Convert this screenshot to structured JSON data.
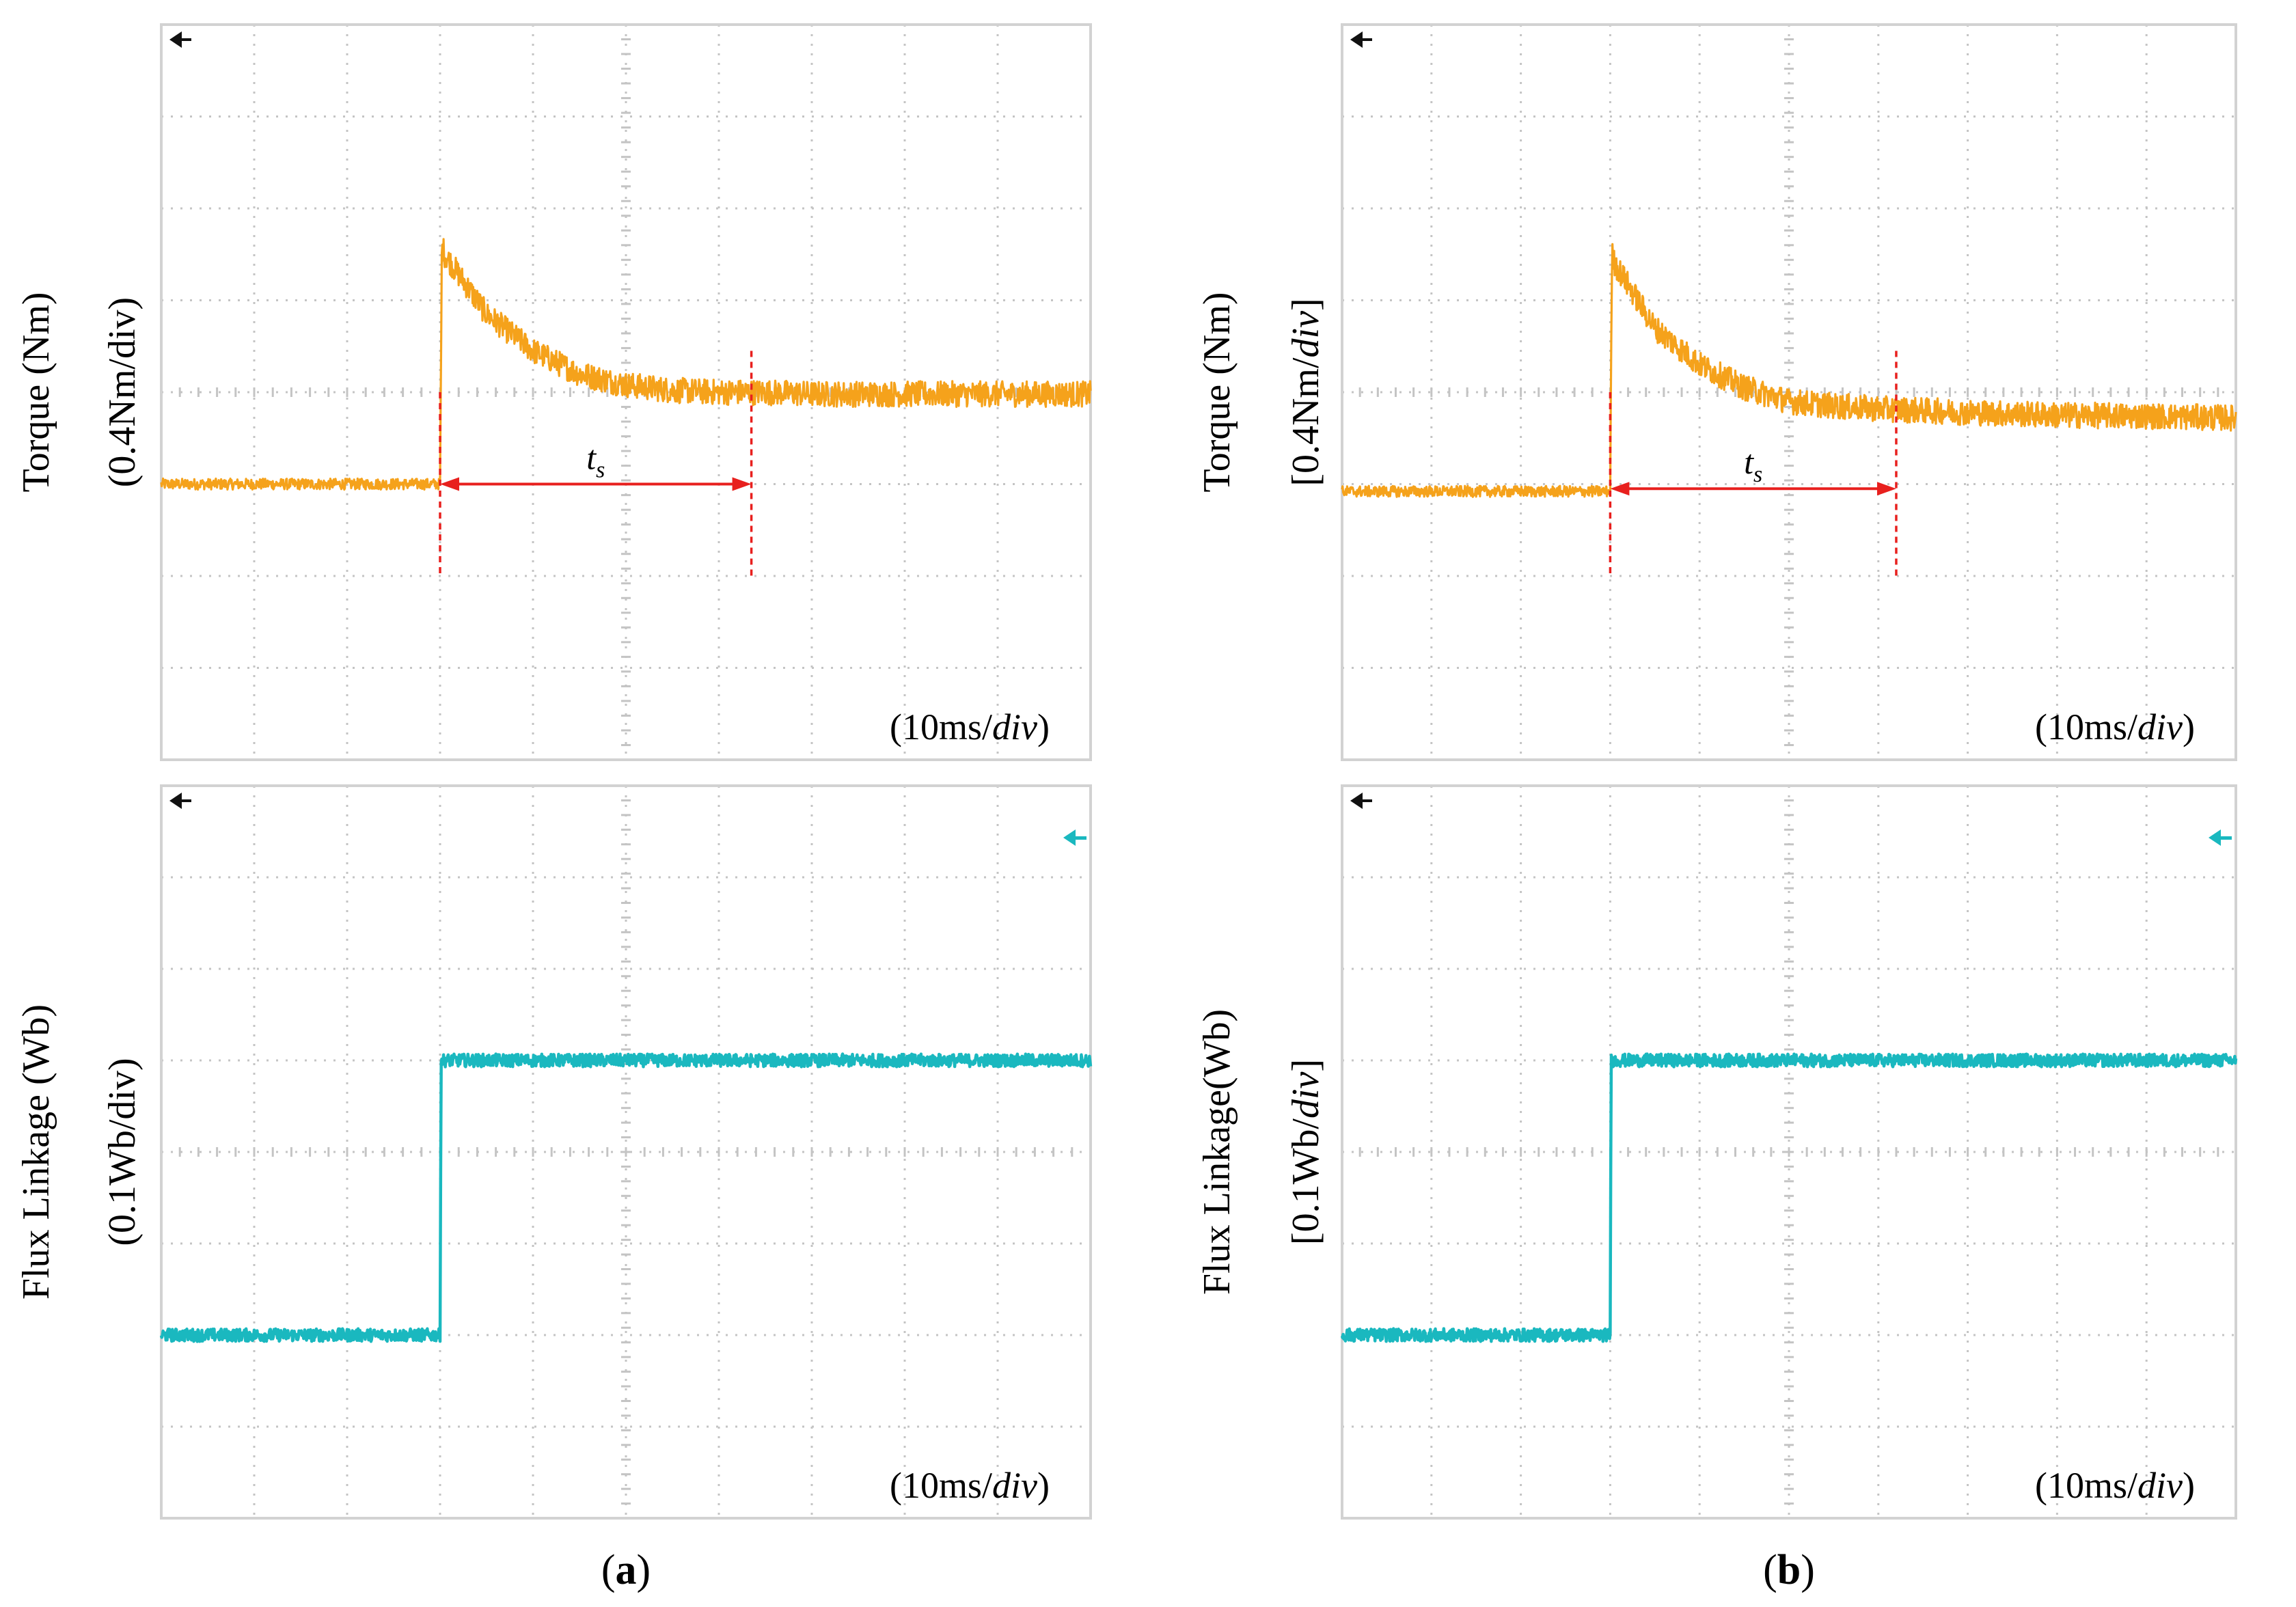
{
  "colors": {
    "torque_trace": "#f5a21b",
    "flux_trace": "#1ab8bf",
    "marker": "#e8201e",
    "grid": "#c4c4c4",
    "frame": "#d2d2d2"
  },
  "panels": [
    {
      "caption_open": "(",
      "caption_letter": "a",
      "caption_close": ")",
      "chart_data": [
        {
          "type": "line",
          "ylabel_line1": "Torque (Nm)",
          "ylabel_line2_pre": "(0.4Nm/div)",
          "ylabel_line2_italic": "",
          "ylabel_line2_post": "",
          "timebase_pre": "(10ms/",
          "timebase_italic": "div",
          "timebase_post": ")",
          "annotation_main": "t",
          "annotation_sub": "s",
          "xlim": [
            0,
            10
          ],
          "ylim": [
            0,
            8
          ],
          "grid": true,
          "series": [
            {
              "x": [
                0,
                3,
                3.02,
                3.05,
                3.5,
                4,
                4.5,
                5,
                5.5,
                6,
                6.5,
                7,
                8,
                9,
                10
              ],
              "y": [
                3.0,
                3.0,
                5.6,
                5.5,
                4.85,
                4.45,
                4.2,
                4.08,
                4.02,
                4.0,
                4.0,
                3.98,
                3.98,
                3.98,
                3.98
              ]
            }
          ],
          "markers": {
            "t_start": 3.0,
            "t_end": 6.35,
            "arrow_level": 3.0
          }
        },
        {
          "type": "line",
          "ylabel_line1": "Flux Linkage (Wb)",
          "ylabel_line2_pre": "(0.1Wb/div)",
          "ylabel_line2_italic": "",
          "ylabel_line2_post": "",
          "timebase_pre": "(10ms/",
          "timebase_italic": "div",
          "timebase_post": ")",
          "xlim": [
            0,
            10
          ],
          "ylim": [
            0,
            8
          ],
          "grid": true,
          "series": [
            {
              "x": [
                0,
                3,
                3.01,
                10
              ],
              "y": [
                2.0,
                2.0,
                5.0,
                5.0
              ]
            }
          ]
        }
      ]
    },
    {
      "caption_open": "(",
      "caption_letter": "b",
      "caption_close": ")",
      "chart_data": [
        {
          "type": "line",
          "ylabel_line1": "Torque (Nm)",
          "ylabel_line2_pre": "[0.4Nm/",
          "ylabel_line2_italic": "div",
          "ylabel_line2_post": "]",
          "timebase_pre": "(10ms/",
          "timebase_italic": "div",
          "timebase_post": ")",
          "annotation_main": "t",
          "annotation_sub": "s",
          "xlim": [
            0,
            10
          ],
          "ylim": [
            0,
            8
          ],
          "grid": true,
          "series": [
            {
              "x": [
                0,
                3,
                3.02,
                3.05,
                3.5,
                4,
                4.5,
                5,
                5.5,
                6,
                6.5,
                7,
                8,
                9,
                10
              ],
              "y": [
                2.92,
                2.92,
                5.5,
                5.4,
                4.7,
                4.3,
                4.05,
                3.9,
                3.85,
                3.82,
                3.8,
                3.78,
                3.75,
                3.74,
                3.72
              ]
            }
          ],
          "markers": {
            "t_start": 3.0,
            "t_end": 6.2,
            "arrow_level": 2.95
          }
        },
        {
          "type": "line",
          "ylabel_line1": "Flux Linkage(Wb)",
          "ylabel_line2_pre": "[0.1Wb/",
          "ylabel_line2_italic": "div",
          "ylabel_line2_post": "]",
          "timebase_pre": "(10ms/",
          "timebase_italic": "div",
          "timebase_post": ")",
          "xlim": [
            0,
            10
          ],
          "ylim": [
            0,
            8
          ],
          "grid": true,
          "series": [
            {
              "x": [
                0,
                3,
                3.01,
                10
              ],
              "y": [
                2.0,
                2.0,
                5.0,
                5.0
              ]
            }
          ]
        }
      ]
    }
  ]
}
